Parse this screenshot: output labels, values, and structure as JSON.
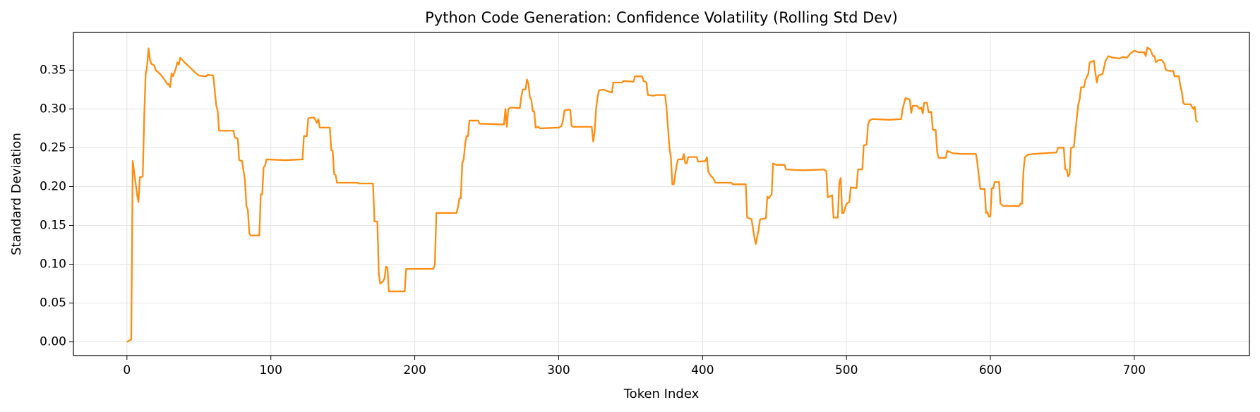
{
  "chart_data": {
    "type": "line",
    "title": "Python Code Generation: Confidence Volatility (Rolling Std Dev)",
    "xlabel": "Token Index",
    "ylabel": "Standard Deviation",
    "grid": true,
    "xlim": [
      -37.2,
      780
    ],
    "ylim": [
      -0.0176,
      0.3985
    ],
    "xticks": [
      0,
      100,
      200,
      300,
      400,
      500,
      600,
      700
    ],
    "yticks": [
      {
        "value": 0,
        "label": "0.00"
      },
      {
        "value": 0.05,
        "label": "0.05"
      },
      {
        "value": 0.1,
        "label": "0.10"
      },
      {
        "value": 0.15,
        "label": "0.15"
      },
      {
        "value": 0.2,
        "label": "0.20"
      },
      {
        "value": 0.25,
        "label": "0.25"
      },
      {
        "value": 0.3,
        "label": "0.30"
      },
      {
        "value": 0.35,
        "label": "0.35"
      }
    ],
    "x": [
      0,
      2,
      3,
      4,
      6,
      7,
      8,
      9,
      11,
      12,
      13,
      14,
      15,
      16,
      17,
      19,
      20,
      23,
      26,
      28,
      29,
      30,
      31,
      32,
      34,
      35,
      36,
      37,
      40,
      44,
      48,
      50,
      55,
      56,
      60,
      62,
      63,
      64,
      70,
      74,
      75,
      77,
      78,
      80,
      82,
      83,
      84,
      85,
      86,
      92,
      93,
      94,
      95,
      96,
      97,
      110,
      122,
      123,
      125,
      126,
      130,
      132,
      133,
      134,
      141,
      142,
      143,
      144,
      145,
      146,
      160,
      161,
      171,
      172,
      174,
      175,
      176,
      178,
      179,
      180,
      181,
      182,
      193,
      194,
      213,
      214,
      215,
      229,
      230,
      231,
      232,
      233,
      234,
      235,
      236,
      237,
      238,
      244,
      245,
      262,
      263,
      264,
      265,
      267,
      273,
      274,
      275,
      277,
      278,
      279,
      280,
      281,
      282,
      283,
      284,
      286,
      287,
      300,
      302,
      303,
      304,
      307,
      308,
      309,
      310,
      323,
      324,
      325,
      326,
      327,
      328,
      331,
      337,
      338,
      344,
      345,
      352,
      353,
      358,
      359,
      361,
      362,
      366,
      368,
      374,
      375,
      376,
      377,
      378,
      379,
      380,
      382,
      383,
      386,
      387,
      388,
      389,
      390,
      396,
      397,
      402,
      403,
      404,
      406,
      407,
      409,
      420,
      421,
      430,
      431,
      434,
      436,
      437,
      439,
      440,
      444,
      445,
      446,
      448,
      449,
      451,
      457,
      458,
      470,
      484,
      486,
      487,
      490,
      491,
      494,
      495,
      496,
      497,
      498,
      500,
      502,
      503,
      507,
      508,
      511,
      512,
      514,
      515,
      516,
      518,
      530,
      538,
      539,
      541,
      544,
      545,
      546,
      549,
      551,
      552,
      553,
      554,
      556,
      557,
      559,
      560,
      562,
      563,
      564,
      569,
      570,
      574,
      580,
      590,
      591,
      592,
      593,
      596,
      597,
      598,
      599,
      600,
      601,
      602,
      603,
      606,
      607,
      609,
      620,
      621,
      622,
      623,
      624,
      626,
      630,
      646,
      647,
      651,
      652,
      653,
      654,
      655,
      656,
      658,
      659,
      661,
      662,
      663,
      665,
      666,
      668,
      669,
      672,
      673,
      674,
      675,
      678,
      680,
      682,
      685,
      690,
      692,
      695,
      697,
      700,
      703,
      707,
      708,
      709,
      711,
      713,
      714,
      715,
      717,
      719,
      721,
      722,
      725,
      727,
      728,
      731,
      732,
      733,
      734,
      735,
      739,
      740,
      741,
      742,
      743,
      744
    ],
    "series": [
      {
        "name": "Rolling Std Dev",
        "color": "#ff8c0f",
        "values": [
          0.0,
          0.002,
          0.003,
          0.233,
          0.205,
          0.19,
          0.18,
          0.212,
          0.213,
          0.29,
          0.345,
          0.355,
          0.378,
          0.363,
          0.358,
          0.356,
          0.35,
          0.345,
          0.338,
          0.332,
          0.332,
          0.328,
          0.346,
          0.342,
          0.352,
          0.36,
          0.357,
          0.366,
          0.36,
          0.353,
          0.346,
          0.343,
          0.342,
          0.344,
          0.343,
          0.305,
          0.298,
          0.272,
          0.272,
          0.272,
          0.263,
          0.262,
          0.234,
          0.233,
          0.208,
          0.175,
          0.17,
          0.14,
          0.137,
          0.137,
          0.19,
          0.19,
          0.225,
          0.227,
          0.235,
          0.234,
          0.235,
          0.265,
          0.265,
          0.288,
          0.289,
          0.282,
          0.287,
          0.276,
          0.276,
          0.247,
          0.246,
          0.216,
          0.215,
          0.205,
          0.205,
          0.204,
          0.204,
          0.155,
          0.155,
          0.088,
          0.075,
          0.078,
          0.082,
          0.097,
          0.096,
          0.065,
          0.065,
          0.094,
          0.094,
          0.1,
          0.166,
          0.166,
          0.173,
          0.185,
          0.185,
          0.23,
          0.235,
          0.255,
          0.265,
          0.265,
          0.285,
          0.285,
          0.281,
          0.28,
          0.3,
          0.277,
          0.3,
          0.302,
          0.301,
          0.315,
          0.325,
          0.325,
          0.338,
          0.332,
          0.315,
          0.312,
          0.297,
          0.297,
          0.276,
          0.277,
          0.275,
          0.276,
          0.278,
          0.285,
          0.298,
          0.299,
          0.299,
          0.278,
          0.277,
          0.277,
          0.258,
          0.27,
          0.3,
          0.315,
          0.324,
          0.325,
          0.321,
          0.334,
          0.334,
          0.336,
          0.335,
          0.342,
          0.342,
          0.336,
          0.334,
          0.318,
          0.317,
          0.318,
          0.318,
          0.3,
          0.275,
          0.25,
          0.237,
          0.203,
          0.203,
          0.228,
          0.235,
          0.235,
          0.242,
          0.23,
          0.23,
          0.238,
          0.238,
          0.232,
          0.233,
          0.238,
          0.219,
          0.213,
          0.212,
          0.205,
          0.205,
          0.203,
          0.203,
          0.16,
          0.158,
          0.135,
          0.126,
          0.145,
          0.158,
          0.159,
          0.187,
          0.185,
          0.19,
          0.23,
          0.228,
          0.228,
          0.222,
          0.221,
          0.222,
          0.22,
          0.186,
          0.189,
          0.16,
          0.16,
          0.205,
          0.211,
          0.166,
          0.166,
          0.178,
          0.18,
          0.199,
          0.198,
          0.222,
          0.222,
          0.253,
          0.254,
          0.28,
          0.285,
          0.287,
          0.286,
          0.287,
          0.3,
          0.314,
          0.312,
          0.295,
          0.304,
          0.304,
          0.3,
          0.302,
          0.294,
          0.308,
          0.308,
          0.296,
          0.296,
          0.273,
          0.273,
          0.245,
          0.237,
          0.237,
          0.246,
          0.243,
          0.242,
          0.242,
          0.23,
          0.213,
          0.197,
          0.197,
          0.166,
          0.167,
          0.161,
          0.162,
          0.198,
          0.198,
          0.206,
          0.206,
          0.178,
          0.175,
          0.175,
          0.178,
          0.178,
          0.22,
          0.238,
          0.241,
          0.242,
          0.244,
          0.25,
          0.25,
          0.222,
          0.222,
          0.213,
          0.216,
          0.25,
          0.251,
          0.27,
          0.305,
          0.312,
          0.328,
          0.328,
          0.337,
          0.345,
          0.36,
          0.362,
          0.346,
          0.334,
          0.343,
          0.345,
          0.362,
          0.368,
          0.366,
          0.365,
          0.367,
          0.366,
          0.371,
          0.375,
          0.373,
          0.373,
          0.368,
          0.379,
          0.377,
          0.368,
          0.368,
          0.36,
          0.363,
          0.363,
          0.358,
          0.35,
          0.349,
          0.349,
          0.342,
          0.342,
          0.33,
          0.322,
          0.308,
          0.306,
          0.306,
          0.303,
          0.3,
          0.303,
          0.285,
          0.283
        ]
      }
    ]
  }
}
